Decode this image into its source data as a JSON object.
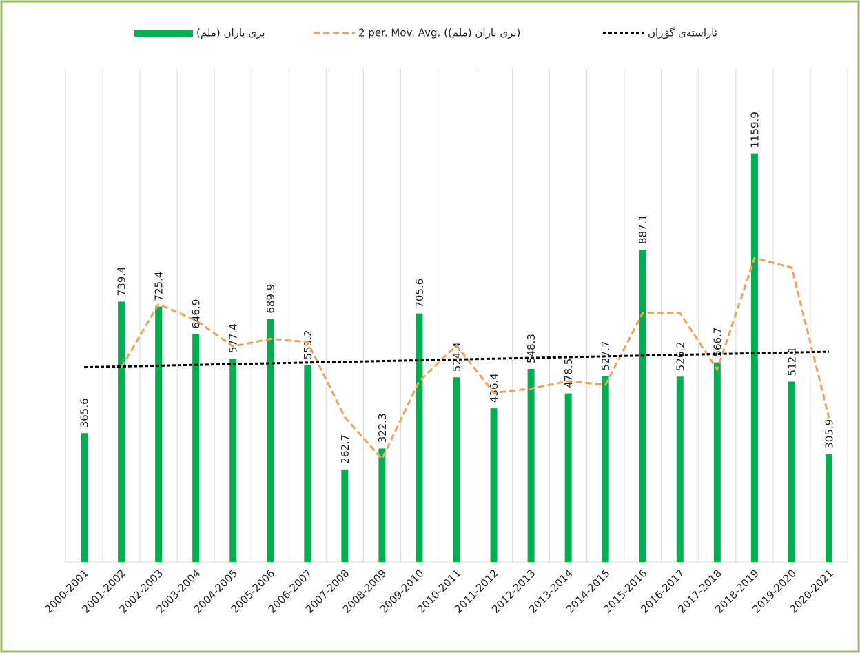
{
  "chart_data": {
    "type": "bar",
    "categories": [
      "2000-2001",
      "2001-2002",
      "2002-2003",
      "2003-2004",
      "2004-2005",
      "2005-2006",
      "2006-2007",
      "2007-2008",
      "2008-2009",
      "2009-2010",
      "2010-2011",
      "2011-2012",
      "2012-2013",
      "2013-2014",
      "2014-2015",
      "2015-2016",
      "2016-2017",
      "2017-2018",
      "2018-2019",
      "2019-2020",
      "2020-2021"
    ],
    "series": [
      {
        "name": "بری باران (ملم)",
        "type": "bar",
        "color": "#00b050",
        "values": [
          365.6,
          739.4,
          725.4,
          646.9,
          577.4,
          689.9,
          559.2,
          262.7,
          322.3,
          705.6,
          524.4,
          436.4,
          548.3,
          478.5,
          527.7,
          887.1,
          526.2,
          566.7,
          1159.9,
          512.1,
          305.9
        ]
      },
      {
        "name": "2 per. Mov. Avg. (بری باران (ملم))",
        "type": "line",
        "dash": "dashed",
        "color": "#f4a155",
        "values": [
          null,
          552.5,
          732.4,
          686.15,
          612.15,
          633.65,
          624.55,
          410.95,
          292.5,
          513.95,
          615,
          480.4,
          492.35,
          513.4,
          503.1,
          707.4,
          706.65,
          546.45,
          863.3,
          836,
          409
        ]
      },
      {
        "name": "ئاراستەی گۆڕان",
        "type": "line",
        "dash": "dotted",
        "color": "#000000",
        "values": [
          553.0,
          555.2,
          557.4,
          559.6,
          561.8,
          564.0,
          566.2,
          568.4,
          570.6,
          572.8,
          575.0,
          577.2,
          579.4,
          581.6,
          583.8,
          586.0,
          588.2,
          590.4,
          592.6,
          594.8,
          597.0
        ]
      }
    ],
    "ylim": [
      0,
      1400
    ],
    "grid": true,
    "legend": "top"
  }
}
